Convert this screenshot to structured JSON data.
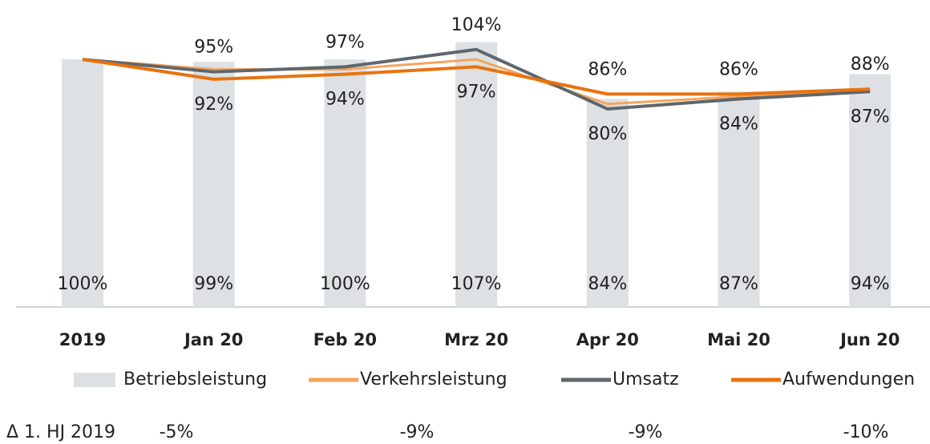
{
  "chart_data": {
    "type": "bar_line",
    "categories": [
      "2019",
      "Jan 20",
      "Feb 20",
      "Mrz 20",
      "Apr 20",
      "Mai 20",
      "Jun 20"
    ],
    "ylim": [
      0,
      124
    ],
    "bars": {
      "name": "Betriebsleistung",
      "color": "#dde1e3",
      "values": [
        100,
        99,
        100,
        107,
        84,
        87,
        94
      ],
      "value_labels": [
        "100%",
        "99%",
        "100%",
        "107%",
        "84%",
        "87%",
        "94%"
      ]
    },
    "series": [
      {
        "name": "Verkehrsleistung",
        "color": "#f5a45d",
        "values": [
          100,
          96,
          96,
          100,
          82,
          85,
          87
        ]
      },
      {
        "name": "Umsatz",
        "color": "#5f676d",
        "values": [
          100,
          95,
          97,
          104,
          80,
          84,
          87
        ],
        "value_labels": [
          null,
          "95%",
          "97%",
          "104%",
          "80%",
          "84%",
          "87%"
        ]
      },
      {
        "name": "Aufwendungen",
        "color": "#e8730e",
        "values": [
          100,
          92,
          94,
          97,
          86,
          86,
          88
        ],
        "value_labels": [
          null,
          "92%",
          "94%",
          "97%",
          "86%",
          "86%",
          "88%"
        ]
      }
    ],
    "footer": {
      "label": "Δ 1. HJ 2019",
      "values": [
        "-5%",
        "-9%",
        "-9%",
        "-10%"
      ]
    }
  }
}
